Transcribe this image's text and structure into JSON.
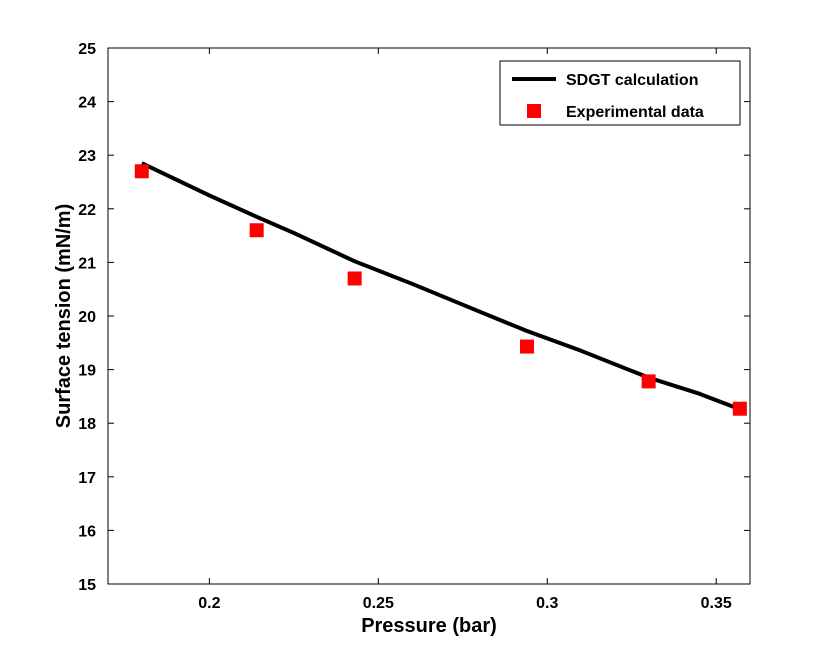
{
  "chart_data": {
    "type": "line",
    "title": "",
    "xlabel": "Pressure (bar)",
    "ylabel": "Surface tension (mN/m)",
    "xlim": [
      0.17,
      0.36
    ],
    "ylim": [
      15,
      25
    ],
    "xticks": [
      0.2,
      0.25,
      0.3,
      0.35
    ],
    "xtick_labels": [
      "0.2",
      "0.25",
      "0.3",
      "0.35"
    ],
    "yticks": [
      15,
      16,
      17,
      18,
      19,
      20,
      21,
      22,
      23,
      24,
      25
    ],
    "ytick_labels": [
      "15",
      "16",
      "17",
      "18",
      "19",
      "20",
      "21",
      "22",
      "23",
      "24",
      "25"
    ],
    "legend_position": "top-right",
    "series": [
      {
        "name": "SDGT calculation",
        "kind": "line",
        "color": "#000000",
        "x": [
          0.18,
          0.2,
          0.214,
          0.225,
          0.243,
          0.26,
          0.28,
          0.294,
          0.31,
          0.33,
          0.345,
          0.357
        ],
        "y": [
          22.85,
          22.25,
          21.85,
          21.55,
          21.02,
          20.6,
          20.08,
          19.72,
          19.35,
          18.85,
          18.55,
          18.26
        ]
      },
      {
        "name": "Experimental data",
        "kind": "scatter",
        "color": "#ff0000",
        "x": [
          0.18,
          0.214,
          0.243,
          0.294,
          0.33,
          0.357
        ],
        "y": [
          22.7,
          21.6,
          20.7,
          19.43,
          18.78,
          18.27
        ]
      }
    ]
  }
}
